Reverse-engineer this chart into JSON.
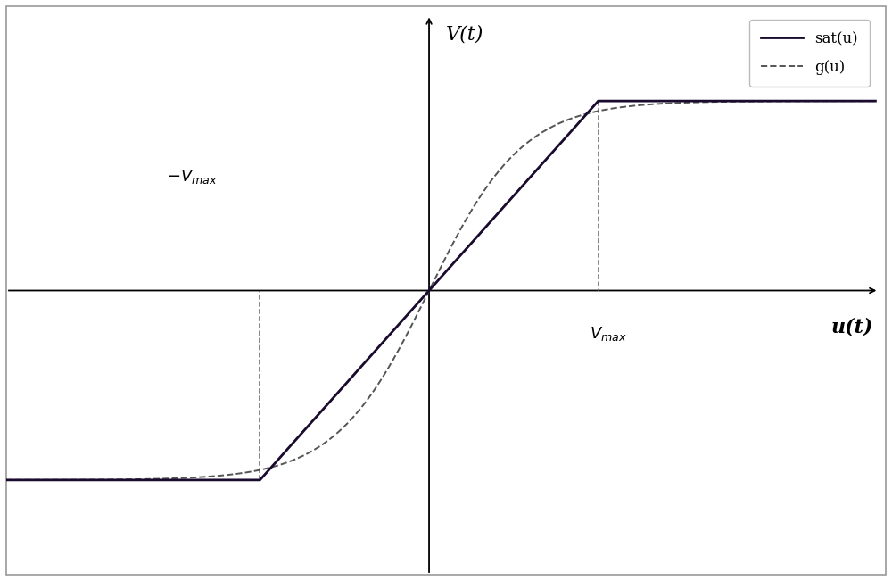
{
  "vmax": 1.0,
  "umax": 1.0,
  "xlim": [
    -2.5,
    2.7
  ],
  "ylim": [
    -1.5,
    1.5
  ],
  "xlabel": "u(t)",
  "ylabel": "V(t)",
  "sat_color": "#1a0a2e",
  "g_color": "#555555",
  "axis_color": "#000000",
  "legend_sat_label": "sat(u)",
  "legend_g_label": "g(u)",
  "fig_width": 10.0,
  "fig_height": 6.51,
  "bg_color": "#ffffff",
  "border_color": "#999999",
  "linewidth_sat": 2.0,
  "linewidth_g": 1.4,
  "linewidth_axis": 1.3,
  "tanh_scale": 1.8
}
